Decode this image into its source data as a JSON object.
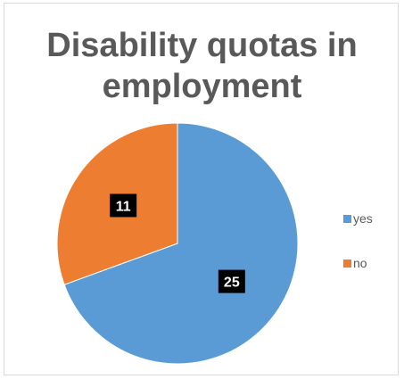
{
  "chart_data": {
    "type": "pie",
    "title_lines": [
      "Disability  quotas in",
      "employment"
    ],
    "slices": [
      {
        "label": "yes",
        "value": 25,
        "color": "#5b9bd5"
      },
      {
        "label": "no",
        "value": 11,
        "color": "#ed7d31"
      }
    ],
    "legend_position": "right",
    "data_labels": true
  }
}
